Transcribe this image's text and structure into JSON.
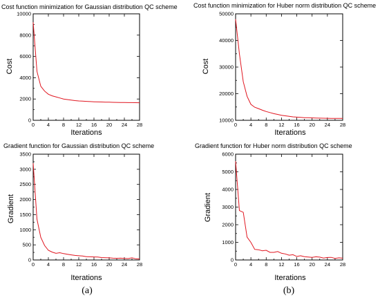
{
  "panel_labels": [
    "(a)",
    "(b)"
  ],
  "chart_data": [
    {
      "type": "line",
      "title": "Cost function minimization for Gaussian distribution QC scheme",
      "xlabel": "Iterations",
      "ylabel": "Cost",
      "xlim": [
        0,
        28
      ],
      "ylim": [
        0,
        10000
      ],
      "xticks": [
        0,
        4,
        8,
        12,
        16,
        20,
        24,
        28
      ],
      "yticks": [
        0,
        2000,
        4000,
        6000,
        8000,
        10000
      ],
      "color": "#e0141e",
      "x": [
        0,
        1,
        2,
        3,
        4,
        5,
        6,
        7,
        8,
        9,
        10,
        11,
        12,
        13,
        14,
        15,
        16,
        17,
        18,
        19,
        20,
        21,
        22,
        23,
        24,
        25,
        26,
        27,
        28
      ],
      "y": [
        9200,
        4600,
        3200,
        2750,
        2450,
        2300,
        2200,
        2100,
        2000,
        1950,
        1900,
        1850,
        1820,
        1800,
        1780,
        1760,
        1740,
        1730,
        1720,
        1710,
        1700,
        1690,
        1680,
        1675,
        1670,
        1665,
        1660,
        1655,
        1650
      ]
    },
    {
      "type": "line",
      "title": "Cost function minimization for Huber norm distribution QC scheme",
      "xlabel": "Iterations",
      "ylabel": "Cost",
      "xlim": [
        0,
        28
      ],
      "ylim": [
        10000,
        50000
      ],
      "xticks": [
        0,
        4,
        8,
        12,
        16,
        20,
        24,
        28
      ],
      "yticks": [
        10000,
        20000,
        30000,
        40000,
        50000
      ],
      "color": "#e0141e",
      "x": [
        0,
        1,
        2,
        3,
        4,
        5,
        6,
        7,
        8,
        9,
        10,
        11,
        12,
        13,
        14,
        15,
        16,
        17,
        18,
        19,
        20,
        21,
        22,
        23,
        24,
        25,
        26,
        27,
        28
      ],
      "y": [
        48000,
        35000,
        24500,
        19000,
        16000,
        14900,
        14400,
        13800,
        13300,
        12900,
        12500,
        12200,
        11900,
        11700,
        11500,
        11300,
        11200,
        11100,
        11000,
        10950,
        10900,
        10850,
        10800,
        10780,
        10760,
        10740,
        10720,
        10710,
        10700
      ]
    },
    {
      "type": "line",
      "title": "Gradient function for Gaussian distribution QC scheme",
      "xlabel": "Iterations",
      "ylabel": "Gradient",
      "xlim": [
        0,
        28
      ],
      "ylim": [
        0,
        3500
      ],
      "xticks": [
        0,
        4,
        8,
        12,
        16,
        20,
        24,
        28
      ],
      "yticks": [
        0,
        500,
        1000,
        1500,
        2000,
        2500,
        3000,
        3500
      ],
      "color": "#e0141e",
      "x": [
        0,
        1,
        2,
        3,
        4,
        5,
        6,
        7,
        8,
        9,
        10,
        11,
        12,
        13,
        14,
        15,
        16,
        17,
        18,
        19,
        20,
        21,
        22,
        23,
        24,
        25,
        26,
        27,
        28
      ],
      "y": [
        3200,
        1350,
        750,
        480,
        320,
        260,
        220,
        240,
        210,
        190,
        170,
        150,
        140,
        130,
        110,
        105,
        100,
        95,
        80,
        75,
        70,
        60,
        55,
        60,
        50,
        45,
        70,
        40,
        35
      ]
    },
    {
      "type": "line",
      "title": "Gradient function for Huber norm distribution QC scheme",
      "xlabel": "Iterations",
      "ylabel": "Gradient",
      "xlim": [
        0,
        28
      ],
      "ylim": [
        0,
        6000
      ],
      "xticks": [
        0,
        4,
        8,
        12,
        16,
        20,
        24,
        28
      ],
      "yticks": [
        0,
        1000,
        2000,
        3000,
        4000,
        5000,
        6000
      ],
      "color": "#e0141e",
      "x": [
        0,
        1,
        2,
        3,
        4,
        5,
        6,
        7,
        8,
        9,
        10,
        11,
        12,
        13,
        14,
        15,
        16,
        17,
        18,
        19,
        20,
        21,
        22,
        23,
        24,
        25,
        26,
        27,
        28
      ],
      "y": [
        5600,
        2800,
        2700,
        1300,
        1000,
        600,
        580,
        520,
        550,
        430,
        430,
        480,
        380,
        340,
        270,
        300,
        200,
        240,
        190,
        170,
        150,
        180,
        160,
        110,
        140,
        150,
        90,
        120,
        100
      ]
    }
  ]
}
